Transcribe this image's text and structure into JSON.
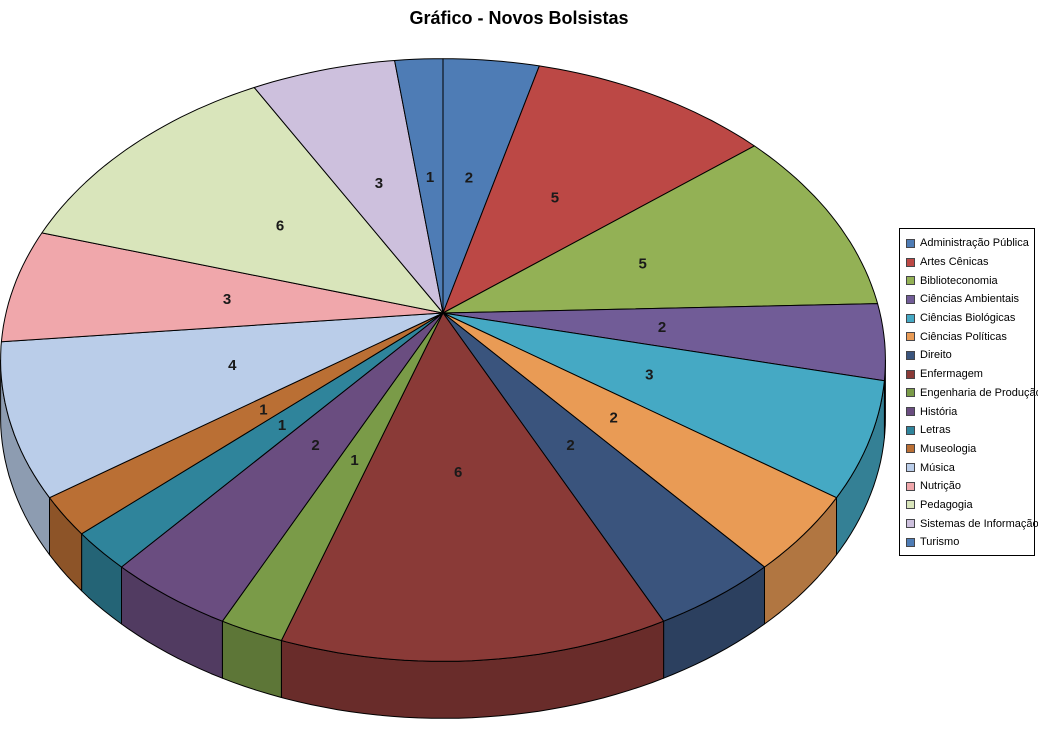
{
  "chart_data": {
    "type": "pie",
    "style": "3d",
    "title": "Gráfico - Novos Bolsistas",
    "background_color": "#FFFFFF",
    "start_angle_deg": 0,
    "direction": "clockwise",
    "data_labels": "value",
    "legend_position": "right",
    "total": 49,
    "categories": [
      "Administração Pública",
      "Artes Cênicas",
      "Biblioteconomia",
      "Ciências Ambientais",
      "Ciências Biológicas",
      "Ciências Políticas",
      "Direito",
      "Enfermagem",
      "Engenharia de Produção",
      "História",
      "Letras",
      "Museologia",
      "Música",
      "Nutrição",
      "Pedagogia",
      "Sistemas de Informação",
      "Turismo"
    ],
    "values": [
      2,
      5,
      5,
      2,
      3,
      2,
      2,
      6,
      1,
      2,
      1,
      1,
      4,
      3,
      6,
      3,
      1
    ],
    "colors": [
      "#4E7CB5",
      "#BC4845",
      "#93B155",
      "#715C97",
      "#45A9C4",
      "#E99B55",
      "#3A547D",
      "#8A3A37",
      "#7A9B48",
      "#6A4D80",
      "#2F849B",
      "#BA6F34",
      "#BACDE9",
      "#F0A7AB",
      "#D9E5BB",
      "#CDC0DD",
      "#4E7CB5"
    ],
    "outline_color": "#000000"
  }
}
